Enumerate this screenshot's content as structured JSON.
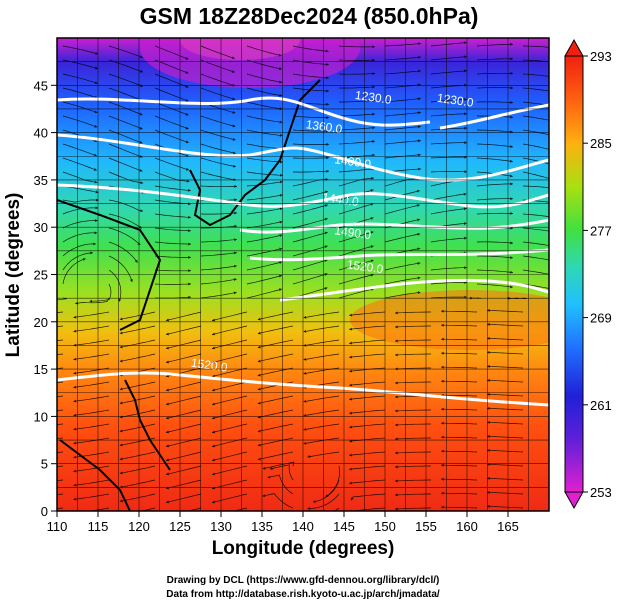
{
  "title": "GSM 18Z28Dec2024 (850.0hPa)",
  "x_axis": {
    "label": "Longitude (degrees)",
    "ticks": [
      110,
      115,
      120,
      125,
      130,
      135,
      140,
      145,
      150,
      155,
      160,
      165
    ],
    "range": [
      110,
      170
    ]
  },
  "y_axis": {
    "label": "Latitude  (degrees)",
    "ticks": [
      0,
      5,
      10,
      15,
      20,
      25,
      30,
      35,
      40,
      45
    ],
    "range": [
      0,
      50
    ]
  },
  "colorbar": {
    "ticks": [
      253,
      261,
      269,
      277,
      285,
      293
    ],
    "range": [
      253,
      293
    ]
  },
  "contours": [
    {
      "label": "1230.0",
      "lon": 148.5,
      "lat": 43.3
    },
    {
      "label": "1230.0",
      "lon": 158.5,
      "lat": 43.0
    },
    {
      "label": "1360.0",
      "lon": 142.5,
      "lat": 40.2
    },
    {
      "label": "1400.0",
      "lon": 146.0,
      "lat": 36.5
    },
    {
      "label": "1440.0",
      "lon": 144.5,
      "lat": 32.5
    },
    {
      "label": "1490.0",
      "lon": 146.0,
      "lat": 29.0
    },
    {
      "label": "1520.0",
      "lon": 147.5,
      "lat": 25.4
    },
    {
      "label": "1520.0",
      "lon": 128.5,
      "lat": 15.0
    }
  ],
  "credits": {
    "line1": "Drawing by DCL (https://www.gfd-dennou.org/library/dcl/)",
    "line2": "Data from http://database.rish.kyoto-u.ac.jp/arch/jmadata/"
  },
  "colors": {
    "scale": [
      "#e020d0",
      "#2020d8",
      "#2aa8ff",
      "#30d8c0",
      "#40e040",
      "#b8e010",
      "#ff9010",
      "#ff4a10",
      "#f02010"
    ]
  }
}
